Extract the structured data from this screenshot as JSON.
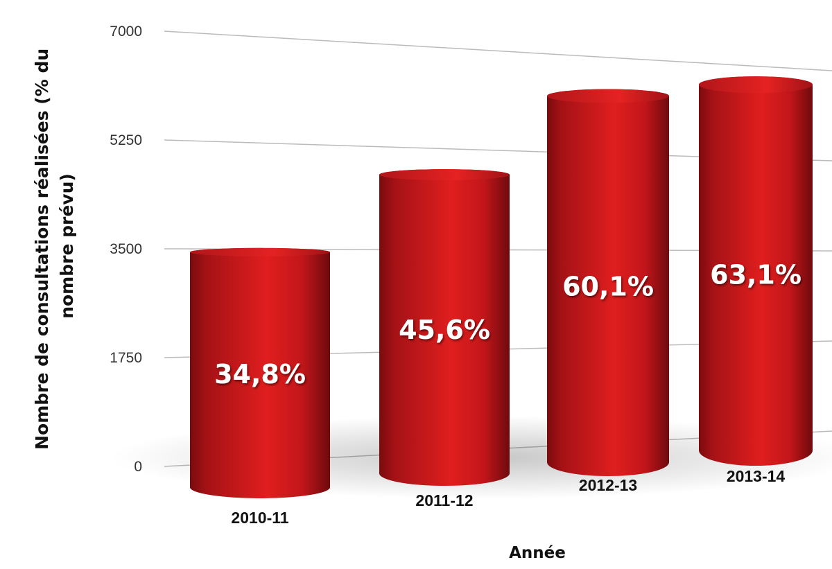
{
  "chart_data": {
    "type": "bar",
    "categories": [
      "2010-11",
      "2011-12",
      "2012-13",
      "2013-14"
    ],
    "values": [
      3450,
      4800,
      6300,
      6650
    ],
    "data_labels": [
      "34,8%",
      "45,6%",
      "60,1%",
      "63,1%"
    ],
    "ylabel": "Nombre de consultations réalisées (% du nombre prévu)",
    "ylabel_lines": [
      "Nombre de consultations réalisées (% du",
      "nombre prévu)"
    ],
    "xlabel": "Année",
    "ylim": [
      0,
      7000
    ],
    "yticks": [
      "0",
      "1750",
      "3500",
      "5250",
      "7000"
    ],
    "ytick_values": [
      0,
      1750,
      3500,
      5250,
      7000
    ],
    "grid": true,
    "legend": "none",
    "colors": {
      "bar_light": "#e01e1e",
      "bar_mid": "#c2161a",
      "bar_dark": "#6e0a0d",
      "grid": "#bbbbbb"
    }
  }
}
